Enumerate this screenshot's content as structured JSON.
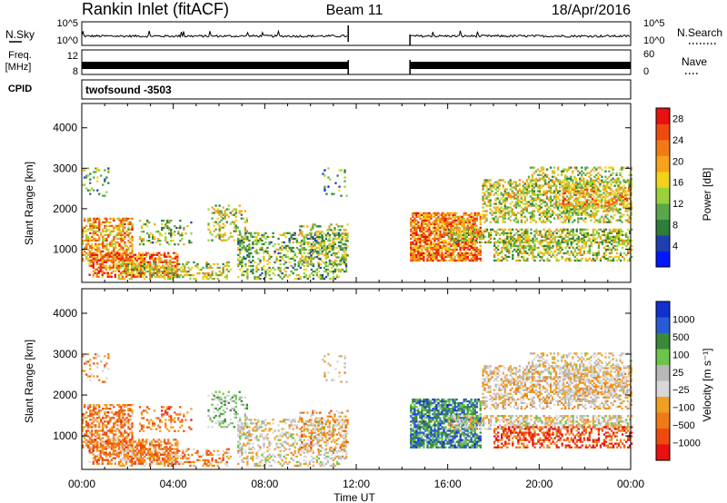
{
  "header": {
    "station": "Rankin Inlet (fitACF)",
    "beam": "Beam 11",
    "date": "18/Apr/2016"
  },
  "nsky": {
    "label_line1": "N.Sky",
    "ticks": [
      "10^5",
      "10^0"
    ],
    "right_label": "N.Search",
    "right_ticks": [
      "10^5",
      "10^0"
    ]
  },
  "freq": {
    "label_line1": "Freq.",
    "label_line2": "[MHz]",
    "ticks": [
      "12",
      "8"
    ],
    "right_label": "Nave",
    "right_ticks": [
      "60",
      "0"
    ]
  },
  "cpid": {
    "label": "CPID",
    "value": "twofsound -3503"
  },
  "colors": {
    "power_scale": [
      "#0018ff",
      "#1f3fb0",
      "#2e7d3a",
      "#5aa64a",
      "#9ad13a",
      "#f2d21a",
      "#f7a21a",
      "#f27a14",
      "#ee4a10",
      "#e81010"
    ],
    "velocity_scale": [
      "#1030d0",
      "#2a5ad6",
      "#3a8a3a",
      "#6cc44a",
      "#b8b8b8",
      "#d8d8d8",
      "#f0a020",
      "#f07a18",
      "#ee4a10",
      "#e81010"
    ]
  },
  "chart_data": [
    {
      "type": "heatmap",
      "panel": "power",
      "ylabel": "Slant Range [km]",
      "y_ticks": [
        "1000",
        "2000",
        "3000",
        "4000"
      ],
      "ylim": [
        180,
        4600
      ],
      "colorbar_label": "Power [dB]",
      "colorbar_ticks": [
        "4",
        "8",
        "12",
        "16",
        "20",
        "24",
        "28"
      ],
      "colorbar_range": [
        0,
        30
      ],
      "data_gap_hours": [
        11.65,
        14.35
      ]
    },
    {
      "type": "heatmap",
      "panel": "velocity",
      "ylabel": "Slant Range [km]",
      "y_ticks": [
        "1000",
        "2000",
        "3000",
        "4000"
      ],
      "ylim": [
        180,
        4600
      ],
      "colorbar_label": "Velocity [m s⁻¹]",
      "colorbar_ticks": [
        "1000",
        "500",
        "100",
        "25",
        "−25",
        "−100",
        "−500",
        "−1000"
      ],
      "data_gap_hours": [
        11.65,
        14.35
      ]
    }
  ],
  "xaxis": {
    "label": "Time UT",
    "ticks": [
      "00:00",
      "04:00",
      "08:00",
      "12:00",
      "16:00",
      "20:00",
      "00:00"
    ],
    "range_hours": [
      0,
      24
    ]
  }
}
